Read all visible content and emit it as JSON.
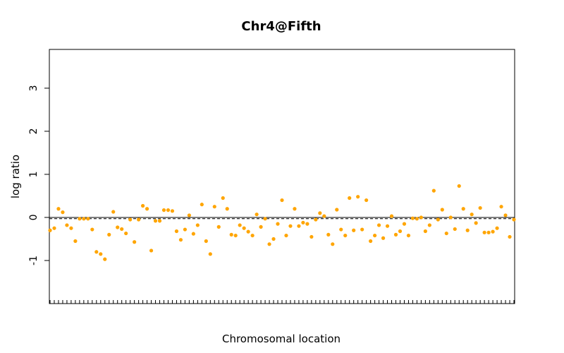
{
  "chart_data": {
    "type": "scatter",
    "title": "Chr4@Fifth",
    "xlabel": "Chromosomal location",
    "ylabel": "log ratio",
    "ylim": [
      -2.0,
      3.9
    ],
    "yticks": [
      -1,
      0,
      1,
      2,
      3
    ],
    "grid": false,
    "legend": "none",
    "point_color": "#FFA500",
    "reference_line": {
      "y": 0,
      "style": "solid",
      "color": "#000000"
    },
    "mean_line": {
      "y": -0.03,
      "style": "dashed",
      "color": "#000000"
    },
    "series": [
      {
        "values": [
          -0.3,
          -0.25,
          0.2,
          0.12,
          -0.18,
          -0.25,
          -0.55,
          -0.03,
          -0.03,
          -0.03,
          -0.28,
          -0.8,
          -0.85,
          -0.97,
          -0.4,
          0.13,
          -0.23,
          -0.27,
          -0.37,
          -0.05,
          -0.57,
          -0.05,
          0.27,
          0.2,
          -0.77,
          -0.08,
          -0.08,
          0.17,
          0.17,
          0.15,
          -0.32,
          -0.52,
          -0.28,
          0.05,
          -0.38,
          -0.18,
          0.3,
          -0.55,
          -0.85,
          0.25,
          -0.22,
          0.45,
          0.2,
          -0.4,
          -0.42,
          -0.18,
          -0.25,
          -0.33,
          -0.42,
          0.07,
          -0.22,
          -0.03,
          -0.62,
          -0.5,
          -0.15,
          0.4,
          -0.42,
          -0.2,
          0.2,
          -0.2,
          -0.12,
          -0.15,
          -0.45,
          -0.05,
          0.1,
          0.03,
          -0.4,
          -0.62,
          0.18,
          -0.28,
          -0.42,
          0.45,
          -0.3,
          0.48,
          -0.28,
          0.4,
          -0.55,
          -0.42,
          -0.18,
          -0.48,
          -0.2,
          0.03,
          -0.4,
          -0.32,
          -0.15,
          -0.42,
          -0.02,
          -0.03,
          0.0,
          -0.32,
          -0.18,
          0.62,
          -0.05,
          0.18,
          -0.37,
          0.0,
          -0.27,
          0.73,
          0.2,
          -0.3,
          0.07,
          -0.13,
          0.22,
          -0.35,
          -0.35,
          -0.33,
          -0.25,
          0.25,
          0.05,
          -0.45,
          -0.05
        ]
      }
    ]
  }
}
